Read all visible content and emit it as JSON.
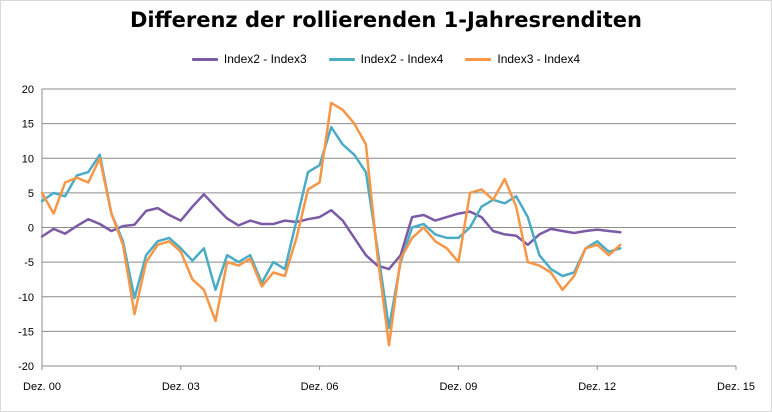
{
  "chart_data": {
    "type": "line",
    "title": "Differenz der rollierenden 1-Jahresrenditen",
    "xlabel": "",
    "ylabel": "",
    "ylim": [
      -20,
      20
    ],
    "yticks": [
      20,
      15,
      10,
      5,
      0,
      -5,
      -10,
      -15,
      -20
    ],
    "xlim": [
      "2000-12",
      "2015-12"
    ],
    "xticks": [
      {
        "label": "Dez. 00",
        "value": "2000-12"
      },
      {
        "label": "Dez. 03",
        "value": "2003-12"
      },
      {
        "label": "Dez. 06",
        "value": "2006-12"
      },
      {
        "label": "Dez. 09",
        "value": "2009-12"
      },
      {
        "label": "Dez. 12",
        "value": "2012-12"
      },
      {
        "label": "Dez. 15",
        "value": "2015-12"
      }
    ],
    "grid": "horizontal",
    "legend_position": "top",
    "series": [
      {
        "name": "Index2 - Index3",
        "color": "#7b5aa6",
        "points": [
          [
            "2000-12",
            -1.3
          ],
          [
            "2001-03",
            -0.2
          ],
          [
            "2001-06",
            -0.9
          ],
          [
            "2001-09",
            0.2
          ],
          [
            "2001-12",
            1.2
          ],
          [
            "2002-03",
            0.5
          ],
          [
            "2002-06",
            -0.5
          ],
          [
            "2002-09",
            0.2
          ],
          [
            "2002-12",
            0.4
          ],
          [
            "2003-03",
            2.4
          ],
          [
            "2003-06",
            2.8
          ],
          [
            "2003-09",
            1.8
          ],
          [
            "2003-12",
            1.0
          ],
          [
            "2004-03",
            3.0
          ],
          [
            "2004-06",
            4.8
          ],
          [
            "2004-09",
            3.0
          ],
          [
            "2004-12",
            1.3
          ],
          [
            "2005-03",
            0.3
          ],
          [
            "2005-06",
            1.0
          ],
          [
            "2005-09",
            0.5
          ],
          [
            "2005-12",
            0.5
          ],
          [
            "2006-03",
            1.0
          ],
          [
            "2006-06",
            0.8
          ],
          [
            "2006-09",
            1.2
          ],
          [
            "2006-12",
            1.5
          ],
          [
            "2007-03",
            2.5
          ],
          [
            "2007-06",
            1.0
          ],
          [
            "2007-09",
            -1.5
          ],
          [
            "2007-12",
            -4.0
          ],
          [
            "2008-03",
            -5.5
          ],
          [
            "2008-06",
            -6.0
          ],
          [
            "2008-09",
            -4.0
          ],
          [
            "2008-12",
            1.5
          ],
          [
            "2009-03",
            1.8
          ],
          [
            "2009-06",
            1.0
          ],
          [
            "2009-09",
            1.5
          ],
          [
            "2009-12",
            2.0
          ],
          [
            "2010-03",
            2.3
          ],
          [
            "2010-06",
            1.5
          ],
          [
            "2010-09",
            -0.5
          ],
          [
            "2010-12",
            -1.0
          ],
          [
            "2011-03",
            -1.2
          ],
          [
            "2011-06",
            -2.5
          ],
          [
            "2011-09",
            -1.0
          ],
          [
            "2011-12",
            -0.2
          ],
          [
            "2012-03",
            -0.5
          ],
          [
            "2012-06",
            -0.8
          ],
          [
            "2012-09",
            -0.5
          ],
          [
            "2012-12",
            -0.3
          ],
          [
            "2013-03",
            -0.5
          ],
          [
            "2013-06",
            -0.7
          ]
        ]
      },
      {
        "name": "Index2 - Index4",
        "color": "#4bacc6",
        "points": [
          [
            "2000-12",
            3.8
          ],
          [
            "2001-03",
            5.0
          ],
          [
            "2001-06",
            4.5
          ],
          [
            "2001-09",
            7.5
          ],
          [
            "2001-12",
            8.0
          ],
          [
            "2002-03",
            10.5
          ],
          [
            "2002-06",
            2.0
          ],
          [
            "2002-09",
            -2.0
          ],
          [
            "2002-12",
            -10.2
          ],
          [
            "2003-03",
            -4.0
          ],
          [
            "2003-06",
            -2.0
          ],
          [
            "2003-09",
            -1.5
          ],
          [
            "2003-12",
            -3.0
          ],
          [
            "2004-03",
            -4.8
          ],
          [
            "2004-06",
            -3.0
          ],
          [
            "2004-09",
            -9.0
          ],
          [
            "2004-12",
            -4.0
          ],
          [
            "2005-03",
            -5.0
          ],
          [
            "2005-06",
            -4.0
          ],
          [
            "2005-09",
            -8.0
          ],
          [
            "2005-12",
            -5.0
          ],
          [
            "2006-03",
            -6.0
          ],
          [
            "2006-06",
            1.0
          ],
          [
            "2006-09",
            8.0
          ],
          [
            "2006-12",
            9.0
          ],
          [
            "2007-03",
            14.5
          ],
          [
            "2007-06",
            12.0
          ],
          [
            "2007-09",
            10.5
          ],
          [
            "2007-12",
            8.0
          ],
          [
            "2008-03",
            -3.0
          ],
          [
            "2008-06",
            -14.5
          ],
          [
            "2008-09",
            -5.0
          ],
          [
            "2008-12",
            0.0
          ],
          [
            "2009-03",
            0.5
          ],
          [
            "2009-06",
            -1.0
          ],
          [
            "2009-09",
            -1.5
          ],
          [
            "2009-12",
            -1.5
          ],
          [
            "2010-03",
            0.0
          ],
          [
            "2010-06",
            3.0
          ],
          [
            "2010-09",
            4.0
          ],
          [
            "2010-12",
            3.5
          ],
          [
            "2011-03",
            4.5
          ],
          [
            "2011-06",
            1.5
          ],
          [
            "2011-09",
            -4.0
          ],
          [
            "2011-12",
            -6.0
          ],
          [
            "2012-03",
            -7.0
          ],
          [
            "2012-06",
            -6.5
          ],
          [
            "2012-09",
            -3.0
          ],
          [
            "2012-12",
            -2.0
          ],
          [
            "2013-03",
            -3.5
          ],
          [
            "2013-06",
            -3.0
          ]
        ]
      },
      {
        "name": "Index3 - Index4",
        "color": "#f79646",
        "points": [
          [
            "2000-12",
            5.0
          ],
          [
            "2001-03",
            2.0
          ],
          [
            "2001-06",
            6.5
          ],
          [
            "2001-09",
            7.2
          ],
          [
            "2001-12",
            6.5
          ],
          [
            "2002-03",
            10.0
          ],
          [
            "2002-06",
            2.0
          ],
          [
            "2002-09",
            -2.5
          ],
          [
            "2002-12",
            -12.5
          ],
          [
            "2003-03",
            -5.0
          ],
          [
            "2003-06",
            -2.5
          ],
          [
            "2003-09",
            -2.0
          ],
          [
            "2003-12",
            -3.5
          ],
          [
            "2004-03",
            -7.5
          ],
          [
            "2004-06",
            -9.0
          ],
          [
            "2004-09",
            -13.5
          ],
          [
            "2004-12",
            -5.0
          ],
          [
            "2005-03",
            -5.5
          ],
          [
            "2005-06",
            -4.5
          ],
          [
            "2005-09",
            -8.5
          ],
          [
            "2005-12",
            -6.5
          ],
          [
            "2006-03",
            -7.0
          ],
          [
            "2006-06",
            -1.5
          ],
          [
            "2006-09",
            5.5
          ],
          [
            "2006-12",
            6.5
          ],
          [
            "2007-03",
            18.0
          ],
          [
            "2007-06",
            17.0
          ],
          [
            "2007-09",
            15.0
          ],
          [
            "2007-12",
            12.0
          ],
          [
            "2008-03",
            -4.0
          ],
          [
            "2008-06",
            -17.0
          ],
          [
            "2008-09",
            -4.5
          ],
          [
            "2008-12",
            -1.5
          ],
          [
            "2009-03",
            0.0
          ],
          [
            "2009-06",
            -2.0
          ],
          [
            "2009-09",
            -3.0
          ],
          [
            "2009-12",
            -5.0
          ],
          [
            "2010-03",
            5.0
          ],
          [
            "2010-06",
            5.5
          ],
          [
            "2010-09",
            4.0
          ],
          [
            "2010-12",
            7.0
          ],
          [
            "2011-03",
            3.0
          ],
          [
            "2011-06",
            -5.0
          ],
          [
            "2011-09",
            -5.5
          ],
          [
            "2011-12",
            -6.5
          ],
          [
            "2012-03",
            -9.0
          ],
          [
            "2012-06",
            -7.0
          ],
          [
            "2012-09",
            -3.0
          ],
          [
            "2012-12",
            -2.5
          ],
          [
            "2013-03",
            -4.0
          ],
          [
            "2013-06",
            -2.5
          ]
        ]
      }
    ]
  }
}
